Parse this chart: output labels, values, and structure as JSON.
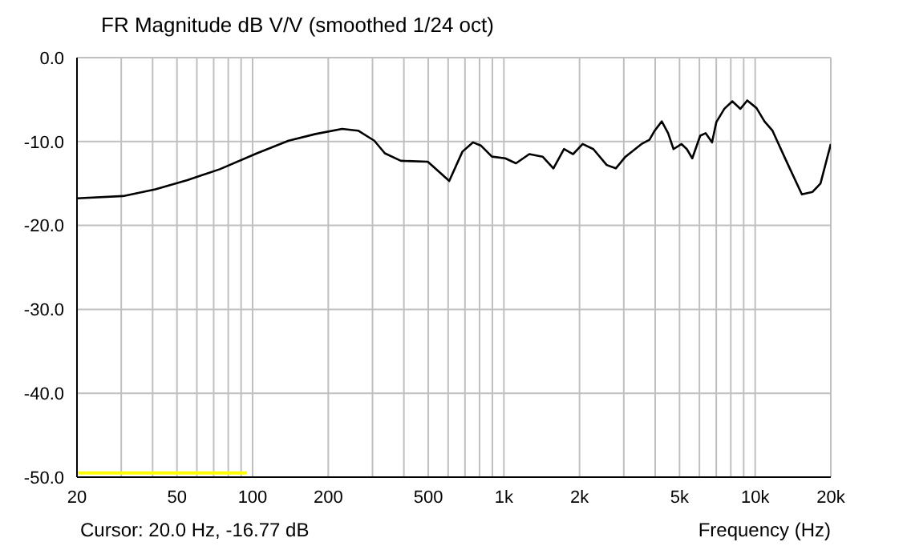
{
  "chart_data": {
    "type": "line",
    "title": "FR Magnitude dB V/V (smoothed 1/24 oct)",
    "xlabel": "Frequency (Hz)",
    "annotations": [
      "Cursor: 20.0 Hz, -16.77 dB"
    ],
    "log": "x",
    "grid": true,
    "marker": "none",
    "line_style": "solid",
    "xlim": [
      20,
      20000
    ],
    "xticks": [
      20,
      {
        "value": 30,
        "label": null
      },
      {
        "value": 40,
        "label": null
      },
      50,
      {
        "value": 60,
        "label": null
      },
      {
        "value": 70,
        "label": null
      },
      {
        "value": 80,
        "label": null
      },
      {
        "value": 90,
        "label": null
      },
      100,
      200,
      {
        "value": 300,
        "label": null
      },
      {
        "value": 400,
        "label": null
      },
      500,
      {
        "value": 600,
        "label": null
      },
      {
        "value": 700,
        "label": null
      },
      {
        "value": 800,
        "label": null
      },
      {
        "value": 900,
        "label": null
      },
      {
        "value": 1000,
        "label": "1k"
      },
      {
        "value": 2000,
        "label": "2k"
      },
      {
        "value": 3000,
        "label": null
      },
      {
        "value": 4000,
        "label": null
      },
      {
        "value": 5000,
        "label": "5k"
      },
      {
        "value": 6000,
        "label": null
      },
      {
        "value": 7000,
        "label": null
      },
      {
        "value": 8000,
        "label": null
      },
      {
        "value": 9000,
        "label": null
      },
      {
        "value": 10000,
        "label": "10k"
      },
      {
        "value": 20000,
        "label": "20k"
      }
    ],
    "ylim": [
      -50,
      0
    ],
    "yticks": [
      {
        "value": -50,
        "label": "-50.0"
      },
      {
        "value": -40,
        "label": "-40.0"
      },
      {
        "value": -30,
        "label": "-30.0"
      },
      {
        "value": -20,
        "label": "-20.0"
      },
      {
        "value": -10,
        "label": "-10.0"
      },
      {
        "value": 0,
        "label": "0.0"
      }
    ],
    "series": [
      {
        "color": "#000000",
        "x": [
          20,
          30.5,
          41,
          55,
          74,
          104,
          139,
          178,
          227,
          263,
          305,
          336,
          389,
          498,
          606,
          684,
          754,
          812,
          896,
          1012,
          1117,
          1262,
          1426,
          1574,
          1735,
          1885,
          2058,
          2270,
          2566,
          2789,
          3048,
          3527,
          3795,
          3983,
          4249,
          4504,
          4732,
          5093,
          5346,
          5620,
          6045,
          6349,
          6735,
          7003,
          7540,
          8112,
          8736,
          9300,
          10120,
          10890,
          11720,
          13250,
          15340,
          16920,
          18200,
          20000
        ],
        "values": [
          -16.77,
          -16.5,
          -15.7,
          -14.6,
          -13.3,
          -11.4,
          -9.9,
          -9.1,
          -8.5,
          -8.7,
          -9.9,
          -11.4,
          -12.3,
          -12.4,
          -14.7,
          -11.2,
          -10.1,
          -10.5,
          -11.8,
          -12.0,
          -12.6,
          -11.5,
          -11.8,
          -13.2,
          -10.9,
          -11.5,
          -10.3,
          -10.9,
          -12.8,
          -13.2,
          -11.8,
          -10.3,
          -9.8,
          -8.7,
          -7.6,
          -9.0,
          -10.9,
          -10.3,
          -10.9,
          -12.0,
          -9.3,
          -9.0,
          -10.1,
          -7.7,
          -6.1,
          -5.2,
          -6.1,
          -5.1,
          -6.0,
          -7.6,
          -8.7,
          -12.2,
          -16.3,
          -16.0,
          -15.0,
          -10.3
        ]
      },
      {
        "color": "#ffff00",
        "x": [
          20,
          95
        ],
        "values": [
          -49.5,
          -49.5
        ]
      }
    ]
  }
}
